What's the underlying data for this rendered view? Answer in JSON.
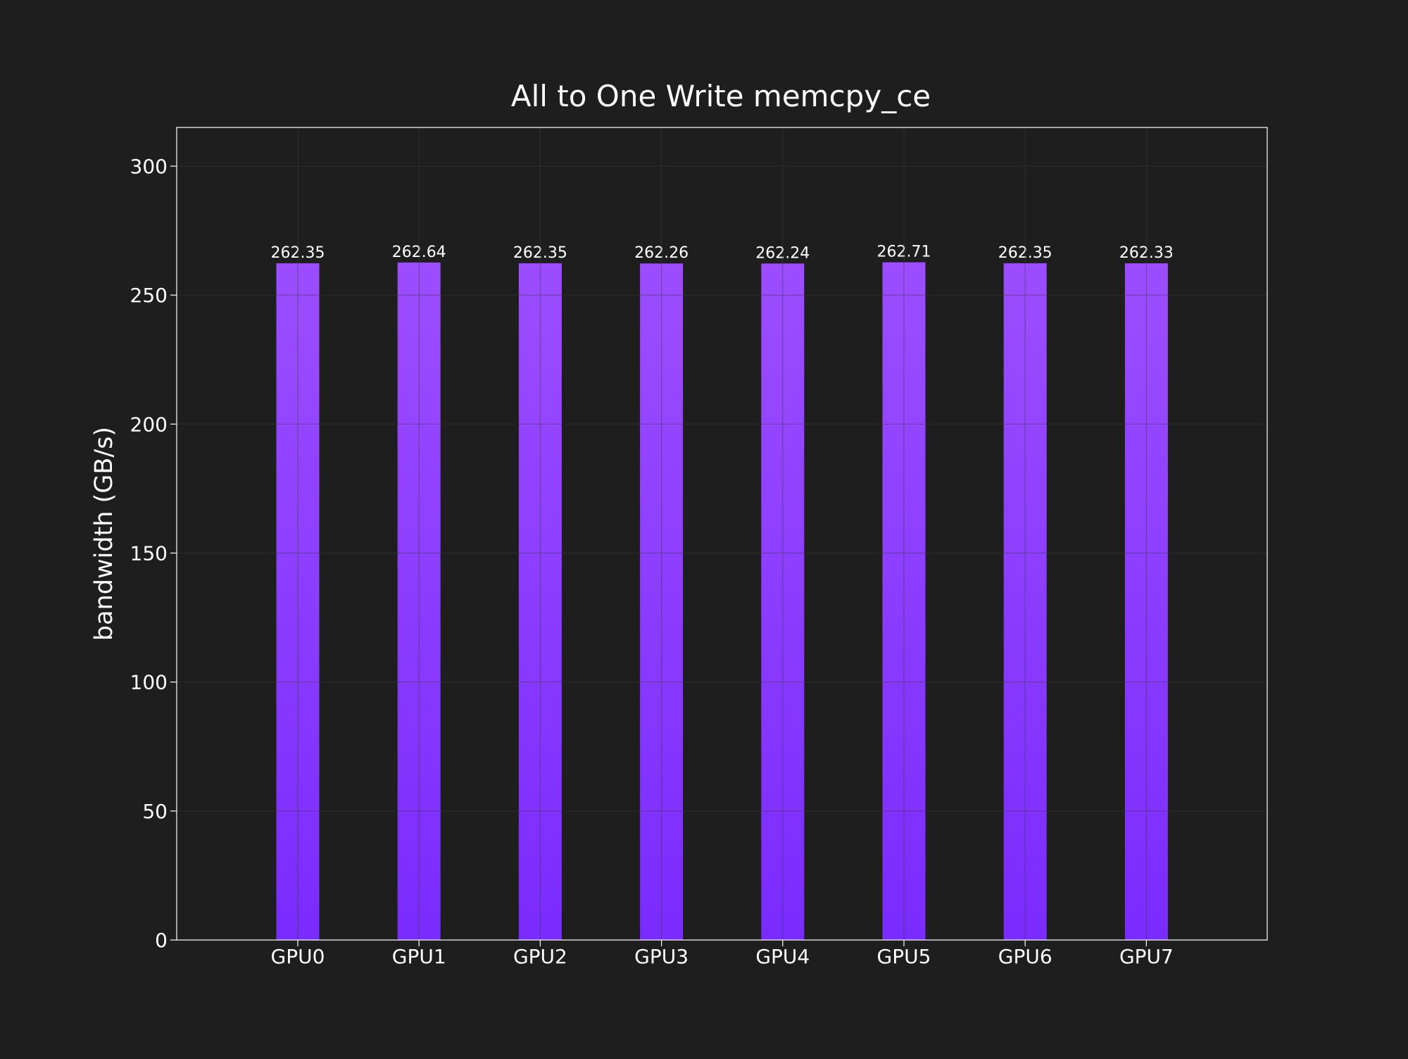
{
  "chart_data": {
    "type": "bar",
    "title": "All to One Write memcpy_ce",
    "xlabel": "",
    "ylabel": "bandwidth (GB/s)",
    "categories": [
      "GPU0",
      "GPU1",
      "GPU2",
      "GPU3",
      "GPU4",
      "GPU5",
      "GPU6",
      "GPU7"
    ],
    "values": [
      262.35,
      262.64,
      262.35,
      262.26,
      262.24,
      262.71,
      262.35,
      262.33
    ],
    "value_labels": [
      "262.35",
      "262.64",
      "262.35",
      "262.26",
      "262.24",
      "262.71",
      "262.35",
      "262.33"
    ],
    "ylim": [
      0,
      315
    ],
    "yticks": [
      0,
      50,
      100,
      150,
      200,
      250,
      300
    ],
    "ytick_labels": [
      "0",
      "50",
      "100",
      "150",
      "200",
      "250",
      "300"
    ],
    "grid": true,
    "legend": "none",
    "colors": {
      "background": "#1e1e1e",
      "bar_top": "#9d4dff",
      "bar_bottom": "#7a2bff",
      "grid": "#3a3a3a",
      "axes": "#ffffff",
      "text": "#ffffff"
    }
  }
}
